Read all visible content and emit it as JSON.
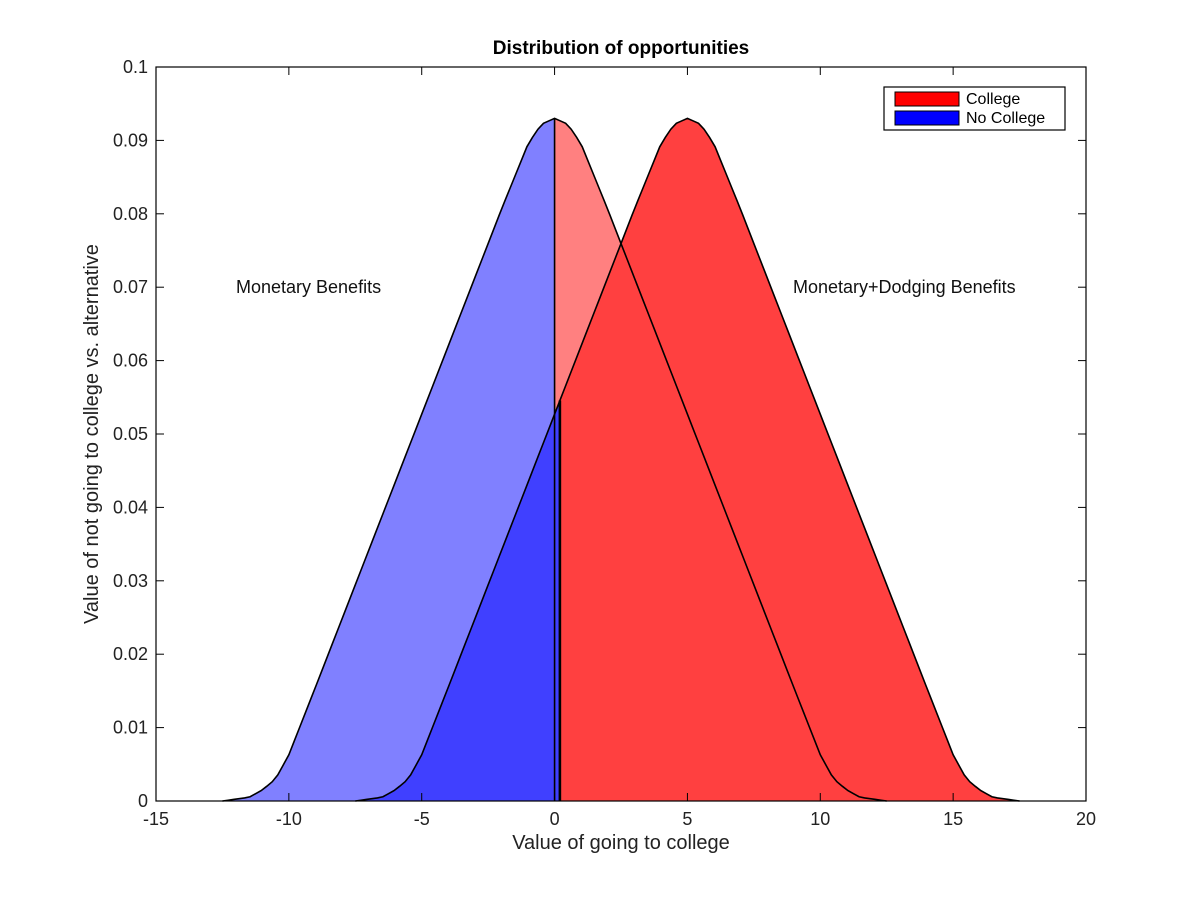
{
  "chart_data": {
    "type": "area",
    "title": "Distribution of opportunities",
    "xlabel": "Value of going to college",
    "ylabel": "Value of not going to college vs. alternative",
    "xlim": [
      -15,
      20
    ],
    "ylim": [
      0,
      0.1
    ],
    "xticks": [
      -15,
      -10,
      -5,
      0,
      5,
      10,
      15,
      20
    ],
    "yticks": [
      0,
      0.01,
      0.02,
      0.03,
      0.04,
      0.05,
      0.06,
      0.07,
      0.08,
      0.09,
      0.1
    ],
    "xtick_labels": [
      "-15",
      "-10",
      "-5",
      "0",
      "5",
      "10",
      "15",
      "20"
    ],
    "ytick_labels": [
      "0",
      "0.01",
      "0.02",
      "0.03",
      "0.04",
      "0.05",
      "0.06",
      "0.07",
      "0.08",
      "0.09",
      "0.1"
    ],
    "grid": false,
    "legend_position": "top-right",
    "legend": [
      {
        "label": "College",
        "color": "#ff0000"
      },
      {
        "label": "No College",
        "color": "#0000ff"
      }
    ],
    "annotations": [
      {
        "text": "Monetary Benefits",
        "x": -12.3,
        "y": 0.07
      },
      {
        "text": "Monetary+Dodging Benefits",
        "x": 9.2,
        "y": 0.07
      }
    ],
    "series": [
      {
        "name": "Monetary Benefits",
        "x": [
          -12.5,
          -11.5,
          -11,
          -10.5,
          -10,
          -9,
          -8,
          -7,
          -6,
          -5,
          -4,
          -3,
          -2,
          -1,
          -0.5,
          0,
          0.5,
          1,
          2,
          3,
          4,
          5,
          6,
          7,
          8,
          9,
          10,
          10.5,
          11,
          11.5,
          12.5
        ],
        "y": [
          0,
          0.0005,
          0.0015,
          0.003,
          0.0063,
          0.0155,
          0.0248,
          0.0341,
          0.0434,
          0.0527,
          0.062,
          0.0713,
          0.0806,
          0.0895,
          0.0922,
          0.093,
          0.0922,
          0.0895,
          0.0806,
          0.0713,
          0.062,
          0.0527,
          0.0434,
          0.0341,
          0.0248,
          0.0155,
          0.0063,
          0.003,
          0.0015,
          0.0005,
          0
        ],
        "cutoff": 0,
        "color_below_cutoff": "#8080ff",
        "color_above_cutoff": "#ff8080"
      },
      {
        "name": "Monetary+Dodging Benefits",
        "x": [
          -7.5,
          -6.5,
          -6,
          -5.5,
          -5,
          -4,
          -3,
          -2,
          -1,
          0,
          1,
          2,
          3,
          4,
          4.5,
          5,
          5.5,
          6,
          7,
          8,
          9,
          10,
          11,
          12,
          13,
          14,
          15,
          15.5,
          16,
          16.5,
          17.5
        ],
        "y": [
          0,
          0.0005,
          0.0015,
          0.003,
          0.0063,
          0.0155,
          0.0248,
          0.0341,
          0.0434,
          0.0527,
          0.062,
          0.0713,
          0.0806,
          0.0895,
          0.0922,
          0.093,
          0.0922,
          0.0895,
          0.0806,
          0.0713,
          0.062,
          0.0527,
          0.0434,
          0.0341,
          0.0248,
          0.0155,
          0.0063,
          0.003,
          0.0015,
          0.0005,
          0
        ],
        "cutoff": 0.2,
        "color_below_cutoff": "#4040ff",
        "color_above_cutoff": "#ff4040"
      }
    ]
  }
}
